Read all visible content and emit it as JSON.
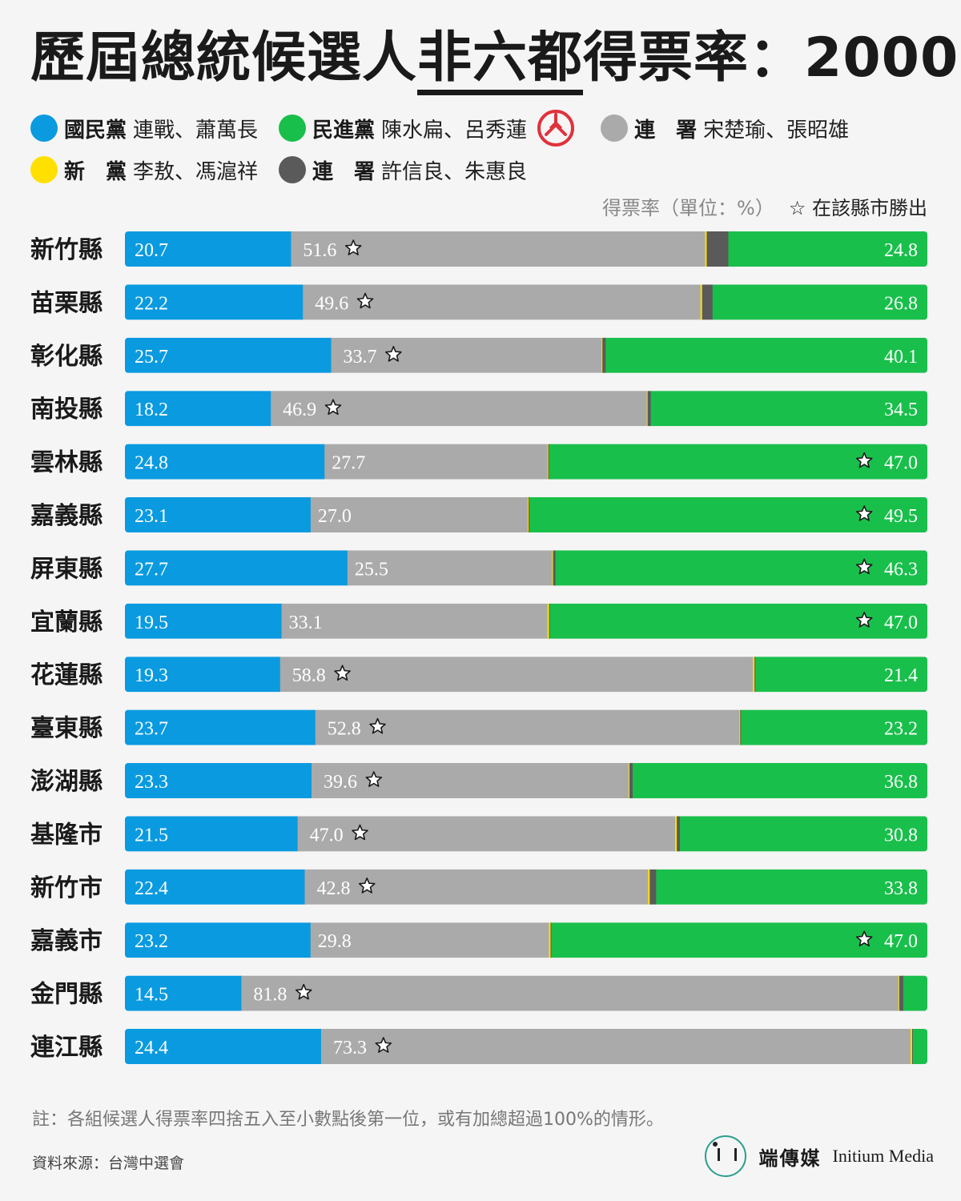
{
  "title": {
    "pre": "歷屆總統候選人",
    "underlined": "非六都",
    "post": "得票率：2000"
  },
  "legend": {
    "kmt": {
      "party": "國民黨",
      "candidates": "連戰、蕭萬長",
      "color": "#0a9ae0"
    },
    "dpp": {
      "party": "民進黨",
      "candidates": "陳水扁、呂秀蓮",
      "color": "#19bf4b"
    },
    "soong": {
      "party": "連　署",
      "candidates": "宋楚瑜、張昭雄",
      "color": "#aaaaaa"
    },
    "np": {
      "party": "新　黨",
      "candidates": "李敖、馮滬祥",
      "color": "#ffe000"
    },
    "hsu": {
      "party": "連　署",
      "candidates": "許信良、朱惠良",
      "color": "#5a5a5a"
    },
    "winner_stamp_icon": "vote-stamp-icon",
    "stamp_color": "#e0323c"
  },
  "unit_note": "得票率（單位：%）",
  "win_note": "☆ 在該縣市勝出",
  "star_icon": "star-icon",
  "chart_data": {
    "type": "bar",
    "orientation": "horizontal",
    "stacked": true,
    "normalized_percent": true,
    "categories": [
      "新竹縣",
      "苗栗縣",
      "彰化縣",
      "南投縣",
      "雲林縣",
      "嘉義縣",
      "屏東縣",
      "宜蘭縣",
      "花蓮縣",
      "臺東縣",
      "澎湖縣",
      "基隆市",
      "新竹市",
      "嘉義市",
      "金門縣",
      "連江縣"
    ],
    "series": [
      {
        "name": "國民黨 連戰、蕭萬長",
        "color": "#0a9ae0",
        "labels": [
          "20.7",
          "22.2",
          "25.7",
          "18.2",
          "24.8",
          "23.1",
          "27.7",
          "19.5",
          "19.3",
          "23.7",
          "23.3",
          "21.5",
          "22.4",
          "23.2",
          "14.5",
          "24.4"
        ],
        "values": [
          20.7,
          22.2,
          25.7,
          18.2,
          24.8,
          23.1,
          27.7,
          19.5,
          19.3,
          23.7,
          23.3,
          21.5,
          22.4,
          23.2,
          14.5,
          24.4
        ]
      },
      {
        "name": "連署 宋楚瑜、張昭雄",
        "color": "#aaaaaa",
        "labels": [
          "51.6",
          "49.6",
          "33.7",
          "46.9",
          "27.7",
          "27.0",
          "25.5",
          "33.1",
          "58.8",
          "52.8",
          "39.6",
          "47.0",
          "42.8",
          "29.8",
          "81.8",
          "73.3"
        ],
        "values": [
          51.6,
          49.6,
          33.7,
          46.9,
          27.7,
          27.0,
          25.5,
          33.1,
          58.8,
          52.8,
          39.6,
          47.0,
          42.8,
          29.8,
          81.8,
          73.3
        ]
      },
      {
        "name": "新黨 李敖、馮滬祥",
        "color": "#ffe000",
        "values": [
          0.2,
          0.2,
          0.1,
          0.1,
          0.1,
          0.1,
          0.1,
          0.2,
          0.2,
          0.1,
          0.1,
          0.2,
          0.2,
          0.2,
          0.1,
          0.2
        ]
      },
      {
        "name": "連署 許信良、朱惠良",
        "color": "#5a5a5a",
        "values": [
          2.7,
          1.3,
          0.4,
          0.4,
          0.1,
          0.1,
          0.3,
          0.1,
          0.1,
          0.1,
          0.4,
          0.4,
          0.8,
          0.1,
          0.5,
          0.1
        ]
      },
      {
        "name": "民進黨 陳水扁、呂秀蓮",
        "color": "#19bf4b",
        "labels": [
          "24.8",
          "26.8",
          "40.1",
          "34.5",
          "47.0",
          "49.5",
          "46.3",
          "47.0",
          "21.4",
          "23.2",
          "36.8",
          "30.8",
          "33.8",
          "47.0",
          "",
          ""
        ],
        "values": [
          24.8,
          26.8,
          40.1,
          34.5,
          47.0,
          49.5,
          46.3,
          47.0,
          21.4,
          23.2,
          36.8,
          30.8,
          33.8,
          47.0,
          3.0,
          1.8
        ]
      }
    ],
    "winner": [
      "soong",
      "soong",
      "soong",
      "soong",
      "dpp",
      "dpp",
      "dpp",
      "dpp",
      "soong",
      "soong",
      "soong",
      "soong",
      "soong",
      "dpp",
      "soong",
      "soong"
    ],
    "xlim": [
      0,
      100
    ]
  },
  "footnote": "註：各組候選人得票率四捨五入至小數點後第一位，或有加總超過100%的情形。",
  "source": "資料來源：台灣中選會",
  "brand": {
    "cn": "端傳媒",
    "en": "Initium Media"
  }
}
